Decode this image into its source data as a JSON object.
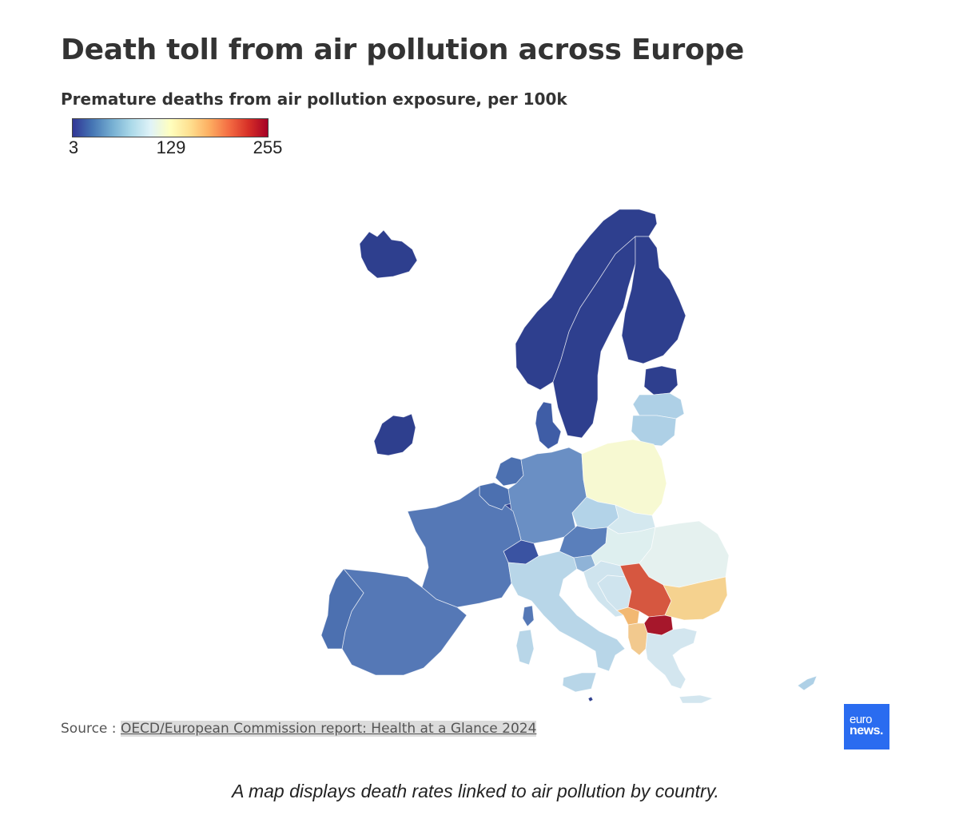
{
  "header": {
    "title": "Death toll from air pollution across Europe",
    "subtitle": "Premature deaths from air pollution exposure, per 100k"
  },
  "legend": {
    "min_label": "3",
    "mid_label": "129",
    "max_label": "255",
    "min": 3,
    "max": 255,
    "colors": [
      "#313695",
      "#4575b4",
      "#74add1",
      "#abd9e9",
      "#e0f3f8",
      "#ffffbf",
      "#fee090",
      "#fdae61",
      "#f46d43",
      "#d73027",
      "#a50026"
    ]
  },
  "source": {
    "prefix": "Source : ",
    "link_text": "OECD/European Commission report: Health at a Glance 2024"
  },
  "logo": {
    "line1": "euro",
    "line2": "news."
  },
  "caption": "A map displays death rates linked to air pollution by country.",
  "countries": [
    {
      "name": "Iceland",
      "color": "#2e3f8e"
    },
    {
      "name": "Ireland",
      "color": "#2e3f8e"
    },
    {
      "name": "Norway",
      "color": "#2e3f8e"
    },
    {
      "name": "Sweden",
      "color": "#2e3f8e"
    },
    {
      "name": "Finland",
      "color": "#2e3f8e"
    },
    {
      "name": "Estonia",
      "color": "#2e3f8e"
    },
    {
      "name": "Latvia",
      "color": "#aed0e6"
    },
    {
      "name": "Lithuania",
      "color": "#aed0e6"
    },
    {
      "name": "Denmark",
      "color": "#3f5da6"
    },
    {
      "name": "Netherlands",
      "color": "#4c70b0"
    },
    {
      "name": "Belgium",
      "color": "#4c70b0"
    },
    {
      "name": "Luxembourg",
      "color": "#2e3f8e"
    },
    {
      "name": "Germany",
      "color": "#6a8fc4"
    },
    {
      "name": "Poland",
      "color": "#f7f9d2"
    },
    {
      "name": "Czechia",
      "color": "#b3d3e8"
    },
    {
      "name": "Slovakia",
      "color": "#d4e8ef"
    },
    {
      "name": "Austria",
      "color": "#5a7fbb"
    },
    {
      "name": "Switzerland",
      "color": "#3a53a2"
    },
    {
      "name": "France",
      "color": "#5578b6"
    },
    {
      "name": "Spain",
      "color": "#5578b6"
    },
    {
      "name": "Portugal",
      "color": "#4c70b0"
    },
    {
      "name": "Italy",
      "color": "#b8d6e8"
    },
    {
      "name": "Slovenia",
      "color": "#8fb3d7"
    },
    {
      "name": "Croatia",
      "color": "#cfe4ee"
    },
    {
      "name": "Hungary",
      "color": "#deefef"
    },
    {
      "name": "Romania",
      "color": "#e5f1ef"
    },
    {
      "name": "Bosnia and Herzegovina",
      "color": "#cfe4ee"
    },
    {
      "name": "Serbia",
      "color": "#d65740"
    },
    {
      "name": "Montenegro",
      "color": "#f2b872"
    },
    {
      "name": "Albania",
      "color": "#f2c98e"
    },
    {
      "name": "North Macedonia",
      "color": "#a6172b"
    },
    {
      "name": "Bulgaria",
      "color": "#f5d28f"
    },
    {
      "name": "Greece",
      "color": "#d3e6ef"
    },
    {
      "name": "Cyprus",
      "color": "#aed0e6"
    },
    {
      "name": "Malta",
      "color": "#2e3f8e"
    }
  ]
}
